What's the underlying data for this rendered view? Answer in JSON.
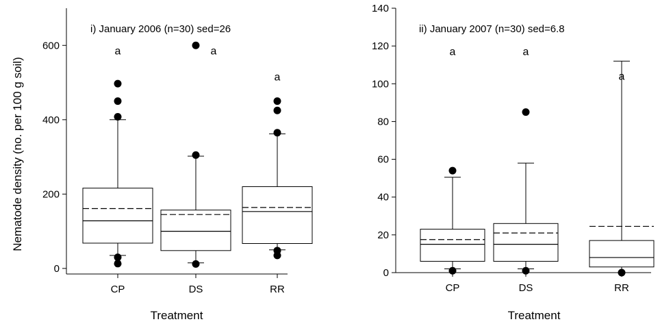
{
  "chart_data": [
    {
      "type": "box",
      "title": "i) January 2006 (n=30) sed=26",
      "xlabel": "Treatment",
      "ylabel": "Nematode density (no. per 100 g soil)",
      "categories": [
        "CP",
        "DS",
        "RR"
      ],
      "ylim": [
        -15,
        700
      ],
      "yticks": [
        0,
        200,
        400,
        600
      ],
      "grid": false,
      "boxes": [
        {
          "category": "CP",
          "whisker_low": 35,
          "q1": 68,
          "median": 128,
          "q3": 216,
          "whisker_high": 400,
          "mean": 161,
          "outliers": [
            13,
            30,
            408,
            450,
            497
          ],
          "letter": "a"
        },
        {
          "category": "DS",
          "whisker_low": 15,
          "q1": 48,
          "median": 100,
          "q3": 157,
          "whisker_high": 302,
          "mean": 145,
          "outliers": [
            12,
            305,
            600
          ],
          "letter": "a"
        },
        {
          "category": "RR",
          "whisker_low": 50,
          "q1": 67,
          "median": 153,
          "q3": 220,
          "whisker_high": 362,
          "mean": 164,
          "outliers": [
            35,
            48,
            365,
            425,
            450
          ],
          "letter": "a"
        }
      ]
    },
    {
      "type": "box",
      "title": "ii) January 2007 (n=30) sed=6.8",
      "xlabel": "Treatment",
      "ylabel": "",
      "categories": [
        "CP",
        "DS",
        "RR"
      ],
      "ylim": [
        0,
        140
      ],
      "yticks": [
        0,
        20,
        40,
        60,
        80,
        100,
        120,
        140
      ],
      "grid": false,
      "boxes": [
        {
          "category": "CP",
          "whisker_low": 2,
          "q1": 6,
          "median": 15,
          "q3": 23,
          "whisker_high": 50.5,
          "mean": 17.5,
          "outliers": [
            1,
            54
          ],
          "letter": "a"
        },
        {
          "category": "DS",
          "whisker_low": 2,
          "q1": 6,
          "median": 15,
          "q3": 26,
          "whisker_high": 58,
          "mean": 21,
          "outliers": [
            1,
            85
          ],
          "letter": "a"
        },
        {
          "category": "RR",
          "whisker_low": 0,
          "q1": 3,
          "median": 8,
          "q3": 17,
          "whisker_high": 112,
          "mean": 24.5,
          "outliers": [
            0
          ],
          "letter": "a"
        }
      ]
    }
  ]
}
